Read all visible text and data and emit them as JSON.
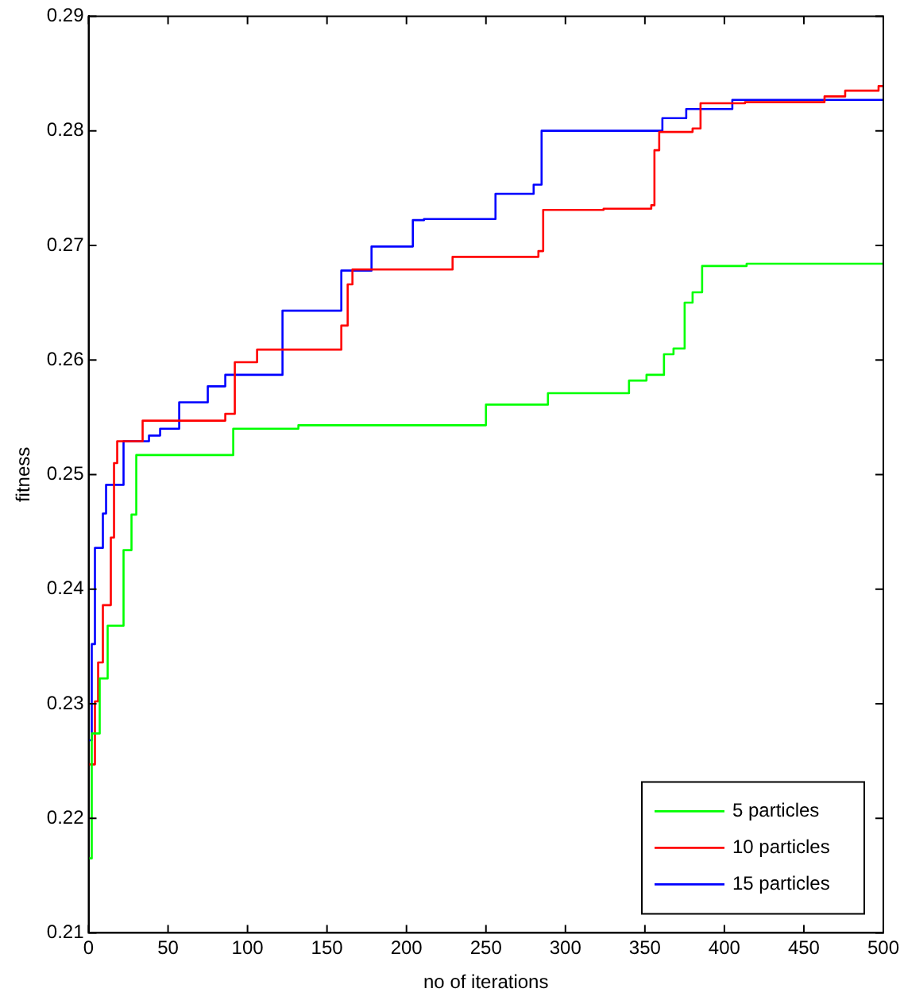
{
  "chart_data": {
    "type": "step",
    "xlabel": "no of iterations",
    "ylabel": "fitness",
    "xlim": [
      0,
      500
    ],
    "xticks": [
      0,
      50,
      100,
      150,
      200,
      250,
      300,
      350,
      400,
      450,
      500
    ],
    "ylim": [
      0.21,
      0.29
    ],
    "yticks": [
      0.21,
      0.22,
      0.23,
      0.24,
      0.25,
      0.26,
      0.27,
      0.28,
      0.29
    ],
    "grid": false,
    "legend": "bottom right",
    "marker": "none",
    "line_style": "solid",
    "series": [
      {
        "name": "5 particles",
        "color": "#00ff00",
        "x": [
          0,
          2,
          7,
          12,
          22,
          27,
          30,
          91,
          132,
          250,
          289,
          340,
          351,
          362,
          368,
          375,
          380,
          386,
          414,
          500
        ],
        "values": [
          0.2165,
          0.2274,
          0.2322,
          0.2368,
          0.2434,
          0.2465,
          0.2517,
          0.254,
          0.2543,
          0.2561,
          0.2571,
          0.2582,
          0.2587,
          0.2605,
          0.261,
          0.265,
          0.2659,
          0.2682,
          0.2684,
          0.2684
        ]
      },
      {
        "name": "10 particles",
        "color": "#ff0000",
        "x": [
          0,
          4,
          6,
          9,
          14,
          16,
          18,
          34,
          86,
          92,
          106,
          159,
          163,
          166,
          229,
          283,
          286,
          324,
          354,
          356,
          359,
          380,
          385,
          413,
          463,
          476,
          497,
          500
        ],
        "values": [
          0.2247,
          0.2302,
          0.2336,
          0.2386,
          0.2445,
          0.251,
          0.2529,
          0.2547,
          0.2553,
          0.2598,
          0.2609,
          0.263,
          0.2666,
          0.2679,
          0.269,
          0.2695,
          0.2731,
          0.2732,
          0.2735,
          0.2783,
          0.2799,
          0.2802,
          0.2824,
          0.2825,
          0.283,
          0.2835,
          0.2839,
          0.2839
        ]
      },
      {
        "name": "15 particles",
        "color": "#0000ff",
        "x": [
          0,
          2,
          4,
          9,
          11,
          22,
          38,
          45,
          57,
          75,
          86,
          122,
          159,
          178,
          204,
          211,
          256,
          280,
          285,
          361,
          376,
          405,
          500
        ],
        "values": [
          0.2268,
          0.2352,
          0.2436,
          0.2466,
          0.2491,
          0.2529,
          0.2534,
          0.254,
          0.2563,
          0.2577,
          0.2587,
          0.2643,
          0.2678,
          0.2699,
          0.2722,
          0.2723,
          0.2745,
          0.2753,
          0.28,
          0.2811,
          0.2819,
          0.2827,
          0.2827
        ]
      }
    ]
  }
}
